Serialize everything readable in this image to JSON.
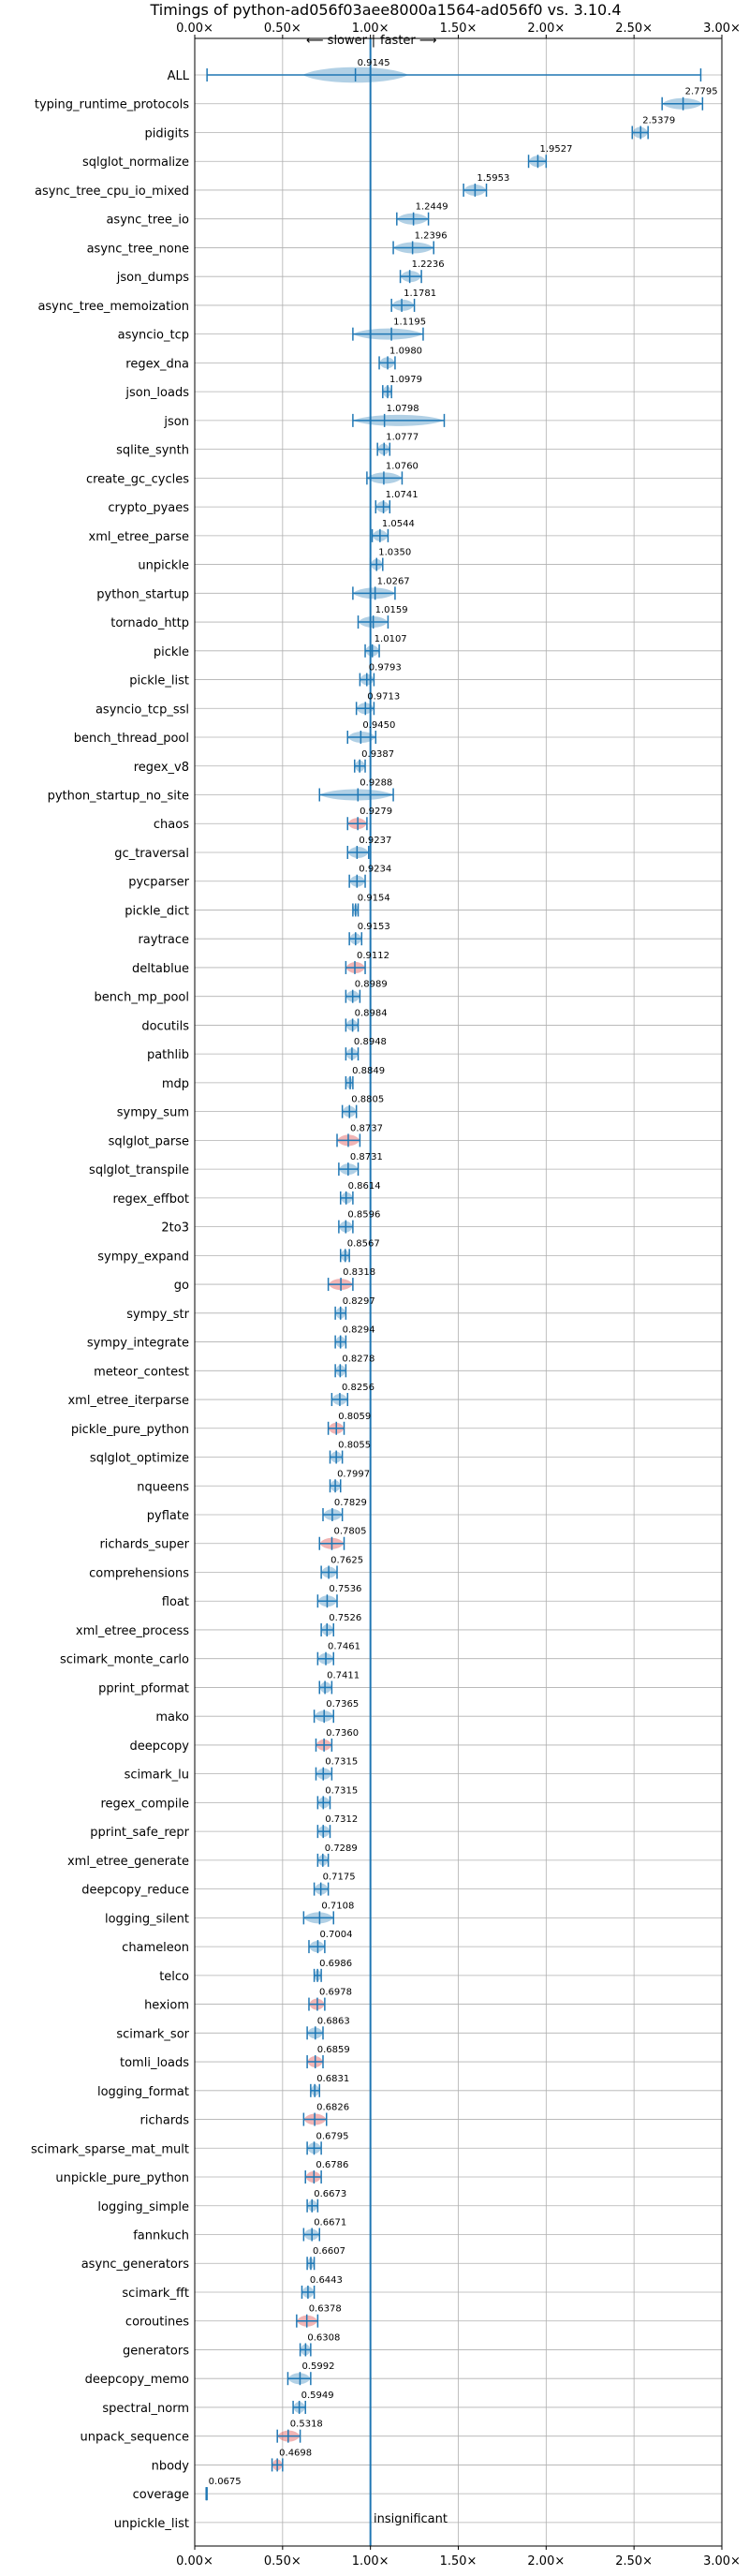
{
  "title": "Timings of python-ad056f03aee8000a1564-ad056f0 vs. 3.10.4",
  "direction": {
    "slower": "⟵ slower",
    "faster": "faster ⟶",
    "separator": "|"
  },
  "insignificant_label": "insignificant",
  "chart_data": {
    "type": "violin",
    "title": "Timings of python-ad056f03aee8000a1564-ad056f0 vs. 3.10.4",
    "xlabel": "",
    "ylabel": "",
    "xlim": [
      0,
      3.0
    ],
    "x_ticks": [
      0,
      0.5,
      1.0,
      1.5,
      2.0,
      2.5,
      3.0
    ],
    "x_tick_labels": [
      "0.00×",
      "0.50×",
      "1.00×",
      "1.50×",
      "2.00×",
      "2.50×",
      "3.00×"
    ],
    "reference_line": 1.0,
    "grid": true,
    "colors": {
      "faster": "#1f77b4",
      "slower": "#d62728",
      "axis": "#000000",
      "grid": "#b0b0b0"
    },
    "benchmarks": [
      {
        "name": "ALL",
        "value": 0.9145,
        "label": "0.9145",
        "min": 0.07,
        "max": 2.88,
        "spread": 0.3,
        "faster": true
      },
      {
        "name": "typing_runtime_protocols",
        "value": 2.7795,
        "label": "2.7795",
        "min": 2.66,
        "max": 2.89,
        "faster": true
      },
      {
        "name": "pidigits",
        "value": 2.5379,
        "label": "2.5379",
        "min": 2.49,
        "max": 2.58,
        "faster": true
      },
      {
        "name": "sqlglot_normalize",
        "value": 1.9527,
        "label": "1.9527",
        "min": 1.9,
        "max": 2.0,
        "faster": true
      },
      {
        "name": "async_tree_cpu_io_mixed",
        "value": 1.5953,
        "label": "1.5953",
        "min": 1.53,
        "max": 1.66,
        "faster": true
      },
      {
        "name": "async_tree_io",
        "value": 1.2449,
        "label": "1.2449",
        "min": 1.15,
        "max": 1.33,
        "faster": true
      },
      {
        "name": "async_tree_none",
        "value": 1.2396,
        "label": "1.2396",
        "min": 1.13,
        "max": 1.36,
        "faster": true
      },
      {
        "name": "json_dumps",
        "value": 1.2236,
        "label": "1.2236",
        "min": 1.17,
        "max": 1.29,
        "faster": true
      },
      {
        "name": "async_tree_memoization",
        "value": 1.1781,
        "label": "1.1781",
        "min": 1.12,
        "max": 1.25,
        "faster": true
      },
      {
        "name": "asyncio_tcp",
        "value": 1.1195,
        "label": "1.1195",
        "min": 0.9,
        "max": 1.3,
        "faster": true
      },
      {
        "name": "regex_dna",
        "value": 1.098,
        "label": "1.0980",
        "min": 1.05,
        "max": 1.14,
        "faster": true
      },
      {
        "name": "json_loads",
        "value": 1.0979,
        "label": "1.0979",
        "min": 1.07,
        "max": 1.12,
        "faster": true
      },
      {
        "name": "json",
        "value": 1.0798,
        "label": "1.0798",
        "min": 0.9,
        "max": 1.42,
        "faster": true
      },
      {
        "name": "sqlite_synth",
        "value": 1.0777,
        "label": "1.0777",
        "min": 1.04,
        "max": 1.11,
        "faster": true
      },
      {
        "name": "create_gc_cycles",
        "value": 1.076,
        "label": "1.0760",
        "min": 0.98,
        "max": 1.18,
        "faster": true
      },
      {
        "name": "crypto_pyaes",
        "value": 1.0741,
        "label": "1.0741",
        "min": 1.03,
        "max": 1.11,
        "faster": true
      },
      {
        "name": "xml_etree_parse",
        "value": 1.0544,
        "label": "1.0544",
        "min": 1.01,
        "max": 1.1,
        "faster": true
      },
      {
        "name": "unpickle",
        "value": 1.035,
        "label": "1.0350",
        "min": 1.0,
        "max": 1.07,
        "faster": true
      },
      {
        "name": "python_startup",
        "value": 1.0267,
        "label": "1.0267",
        "min": 0.9,
        "max": 1.14,
        "faster": true
      },
      {
        "name": "tornado_http",
        "value": 1.0159,
        "label": "1.0159",
        "min": 0.93,
        "max": 1.1,
        "faster": true
      },
      {
        "name": "pickle",
        "value": 1.0107,
        "label": "1.0107",
        "min": 0.97,
        "max": 1.05,
        "faster": true
      },
      {
        "name": "pickle_list",
        "value": 0.9793,
        "label": "0.9793",
        "min": 0.94,
        "max": 1.02,
        "faster": true
      },
      {
        "name": "asyncio_tcp_ssl",
        "value": 0.9713,
        "label": "0.9713",
        "min": 0.92,
        "max": 1.02,
        "faster": true
      },
      {
        "name": "bench_thread_pool",
        "value": 0.945,
        "label": "0.9450",
        "min": 0.87,
        "max": 1.03,
        "faster": true
      },
      {
        "name": "regex_v8",
        "value": 0.9387,
        "label": "0.9387",
        "min": 0.91,
        "max": 0.97,
        "faster": true
      },
      {
        "name": "python_startup_no_site",
        "value": 0.9288,
        "label": "0.9288",
        "min": 0.71,
        "max": 1.13,
        "faster": true
      },
      {
        "name": "chaos",
        "value": 0.9279,
        "label": "0.9279",
        "min": 0.87,
        "max": 0.98,
        "faster": false
      },
      {
        "name": "gc_traversal",
        "value": 0.9237,
        "label": "0.9237",
        "min": 0.87,
        "max": 0.99,
        "faster": true
      },
      {
        "name": "pycparser",
        "value": 0.9234,
        "label": "0.9234",
        "min": 0.88,
        "max": 0.97,
        "faster": true
      },
      {
        "name": "pickle_dict",
        "value": 0.9154,
        "label": "0.9154",
        "min": 0.9,
        "max": 0.93,
        "faster": true
      },
      {
        "name": "raytrace",
        "value": 0.9153,
        "label": "0.9153",
        "min": 0.88,
        "max": 0.95,
        "faster": true
      },
      {
        "name": "deltablue",
        "value": 0.9112,
        "label": "0.9112",
        "min": 0.86,
        "max": 0.97,
        "faster": false
      },
      {
        "name": "bench_mp_pool",
        "value": 0.8989,
        "label": "0.8989",
        "min": 0.86,
        "max": 0.94,
        "faster": true
      },
      {
        "name": "docutils",
        "value": 0.8984,
        "label": "0.8984",
        "min": 0.86,
        "max": 0.93,
        "faster": true
      },
      {
        "name": "pathlib",
        "value": 0.8948,
        "label": "0.8948",
        "min": 0.86,
        "max": 0.93,
        "faster": true
      },
      {
        "name": "mdp",
        "value": 0.8849,
        "label": "0.8849",
        "min": 0.86,
        "max": 0.9,
        "faster": true
      },
      {
        "name": "sympy_sum",
        "value": 0.8805,
        "label": "0.8805",
        "min": 0.84,
        "max": 0.92,
        "faster": true
      },
      {
        "name": "sqlglot_parse",
        "value": 0.8737,
        "label": "0.8737",
        "min": 0.81,
        "max": 0.94,
        "faster": false
      },
      {
        "name": "sqlglot_transpile",
        "value": 0.8731,
        "label": "0.8731",
        "min": 0.82,
        "max": 0.93,
        "faster": true
      },
      {
        "name": "regex_effbot",
        "value": 0.8614,
        "label": "0.8614",
        "min": 0.83,
        "max": 0.9,
        "faster": true
      },
      {
        "name": "2to3",
        "value": 0.8596,
        "label": "0.8596",
        "min": 0.82,
        "max": 0.9,
        "faster": true
      },
      {
        "name": "sympy_expand",
        "value": 0.8567,
        "label": "0.8567",
        "min": 0.83,
        "max": 0.88,
        "faster": true
      },
      {
        "name": "go",
        "value": 0.8318,
        "label": "0.8318",
        "min": 0.76,
        "max": 0.9,
        "faster": false
      },
      {
        "name": "sympy_str",
        "value": 0.8297,
        "label": "0.8297",
        "min": 0.8,
        "max": 0.86,
        "faster": true
      },
      {
        "name": "sympy_integrate",
        "value": 0.8294,
        "label": "0.8294",
        "min": 0.8,
        "max": 0.86,
        "faster": true
      },
      {
        "name": "meteor_contest",
        "value": 0.8278,
        "label": "0.8278",
        "min": 0.8,
        "max": 0.86,
        "faster": true
      },
      {
        "name": "xml_etree_iterparse",
        "value": 0.8256,
        "label": "0.8256",
        "min": 0.78,
        "max": 0.87,
        "faster": true
      },
      {
        "name": "pickle_pure_python",
        "value": 0.8059,
        "label": "0.8059",
        "min": 0.76,
        "max": 0.85,
        "faster": false
      },
      {
        "name": "sqlglot_optimize",
        "value": 0.8055,
        "label": "0.8055",
        "min": 0.77,
        "max": 0.84,
        "faster": true
      },
      {
        "name": "nqueens",
        "value": 0.7997,
        "label": "0.7997",
        "min": 0.77,
        "max": 0.83,
        "faster": true
      },
      {
        "name": "pyflate",
        "value": 0.7829,
        "label": "0.7829",
        "min": 0.73,
        "max": 0.84,
        "faster": true
      },
      {
        "name": "richards_super",
        "value": 0.7805,
        "label": "0.7805",
        "min": 0.71,
        "max": 0.85,
        "faster": false
      },
      {
        "name": "comprehensions",
        "value": 0.7625,
        "label": "0.7625",
        "min": 0.72,
        "max": 0.81,
        "faster": true
      },
      {
        "name": "float",
        "value": 0.7536,
        "label": "0.7536",
        "min": 0.7,
        "max": 0.81,
        "faster": true
      },
      {
        "name": "xml_etree_process",
        "value": 0.7526,
        "label": "0.7526",
        "min": 0.72,
        "max": 0.79,
        "faster": true
      },
      {
        "name": "scimark_monte_carlo",
        "value": 0.7461,
        "label": "0.7461",
        "min": 0.7,
        "max": 0.79,
        "faster": true
      },
      {
        "name": "pprint_pformat",
        "value": 0.7411,
        "label": "0.7411",
        "min": 0.71,
        "max": 0.78,
        "faster": true
      },
      {
        "name": "mako",
        "value": 0.7365,
        "label": "0.7365",
        "min": 0.68,
        "max": 0.79,
        "faster": true
      },
      {
        "name": "deepcopy",
        "value": 0.736,
        "label": "0.7360",
        "min": 0.69,
        "max": 0.78,
        "faster": false
      },
      {
        "name": "scimark_lu",
        "value": 0.7315,
        "label": "0.7315",
        "min": 0.69,
        "max": 0.78,
        "faster": true
      },
      {
        "name": "regex_compile",
        "value": 0.7315,
        "label": "0.7315",
        "min": 0.7,
        "max": 0.77,
        "faster": true
      },
      {
        "name": "pprint_safe_repr",
        "value": 0.7312,
        "label": "0.7312",
        "min": 0.7,
        "max": 0.77,
        "faster": true
      },
      {
        "name": "xml_etree_generate",
        "value": 0.7289,
        "label": "0.7289",
        "min": 0.7,
        "max": 0.76,
        "faster": true
      },
      {
        "name": "deepcopy_reduce",
        "value": 0.7175,
        "label": "0.7175",
        "min": 0.68,
        "max": 0.76,
        "faster": true
      },
      {
        "name": "logging_silent",
        "value": 0.7108,
        "label": "0.7108",
        "min": 0.62,
        "max": 0.79,
        "faster": true
      },
      {
        "name": "chameleon",
        "value": 0.7004,
        "label": "0.7004",
        "min": 0.65,
        "max": 0.74,
        "faster": true
      },
      {
        "name": "telco",
        "value": 0.6986,
        "label": "0.6986",
        "min": 0.68,
        "max": 0.72,
        "faster": true
      },
      {
        "name": "hexiom",
        "value": 0.6978,
        "label": "0.6978",
        "min": 0.65,
        "max": 0.74,
        "faster": false
      },
      {
        "name": "scimark_sor",
        "value": 0.6863,
        "label": "0.6863",
        "min": 0.64,
        "max": 0.73,
        "faster": true
      },
      {
        "name": "tomli_loads",
        "value": 0.6859,
        "label": "0.6859",
        "min": 0.64,
        "max": 0.73,
        "faster": false
      },
      {
        "name": "logging_format",
        "value": 0.6831,
        "label": "0.6831",
        "min": 0.66,
        "max": 0.71,
        "faster": true
      },
      {
        "name": "richards",
        "value": 0.6826,
        "label": "0.6826",
        "min": 0.62,
        "max": 0.75,
        "faster": false
      },
      {
        "name": "scimark_sparse_mat_mult",
        "value": 0.6795,
        "label": "0.6795",
        "min": 0.64,
        "max": 0.72,
        "faster": true
      },
      {
        "name": "unpickle_pure_python",
        "value": 0.6786,
        "label": "0.6786",
        "min": 0.63,
        "max": 0.72,
        "faster": false
      },
      {
        "name": "logging_simple",
        "value": 0.6673,
        "label": "0.6673",
        "min": 0.64,
        "max": 0.7,
        "faster": true
      },
      {
        "name": "fannkuch",
        "value": 0.6671,
        "label": "0.6671",
        "min": 0.62,
        "max": 0.71,
        "faster": true
      },
      {
        "name": "async_generators",
        "value": 0.6607,
        "label": "0.6607",
        "min": 0.64,
        "max": 0.68,
        "faster": true
      },
      {
        "name": "scimark_fft",
        "value": 0.6443,
        "label": "0.6443",
        "min": 0.61,
        "max": 0.68,
        "faster": true
      },
      {
        "name": "coroutines",
        "value": 0.6378,
        "label": "0.6378",
        "min": 0.58,
        "max": 0.7,
        "faster": false
      },
      {
        "name": "generators",
        "value": 0.6308,
        "label": "0.6308",
        "min": 0.6,
        "max": 0.66,
        "faster": true
      },
      {
        "name": "deepcopy_memo",
        "value": 0.5992,
        "label": "0.5992",
        "min": 0.53,
        "max": 0.66,
        "faster": true
      },
      {
        "name": "spectral_norm",
        "value": 0.5949,
        "label": "0.5949",
        "min": 0.56,
        "max": 0.63,
        "faster": true
      },
      {
        "name": "unpack_sequence",
        "value": 0.5318,
        "label": "0.5318",
        "min": 0.47,
        "max": 0.6,
        "faster": false
      },
      {
        "name": "nbody",
        "value": 0.4698,
        "label": "0.4698",
        "min": 0.44,
        "max": 0.5,
        "faster": false
      },
      {
        "name": "coverage",
        "value": 0.0675,
        "label": "0.0675",
        "min": 0.065,
        "max": 0.07,
        "faster": true
      },
      {
        "name": "unpickle_list",
        "value": null,
        "label": "",
        "insignificant": true
      }
    ]
  }
}
